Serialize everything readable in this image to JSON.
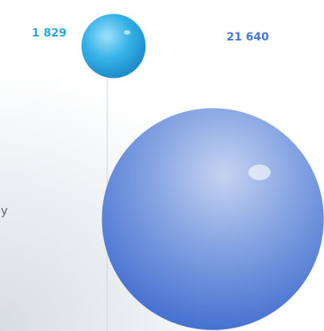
{
  "chart_data": {
    "type": "bubble",
    "values": [
      1829,
      21640
    ],
    "value_labels": [
      "1 829",
      "21 640"
    ],
    "colors": [
      "#2aa6e0",
      "#4a78d8"
    ],
    "annotations": [
      "y"
    ]
  }
}
